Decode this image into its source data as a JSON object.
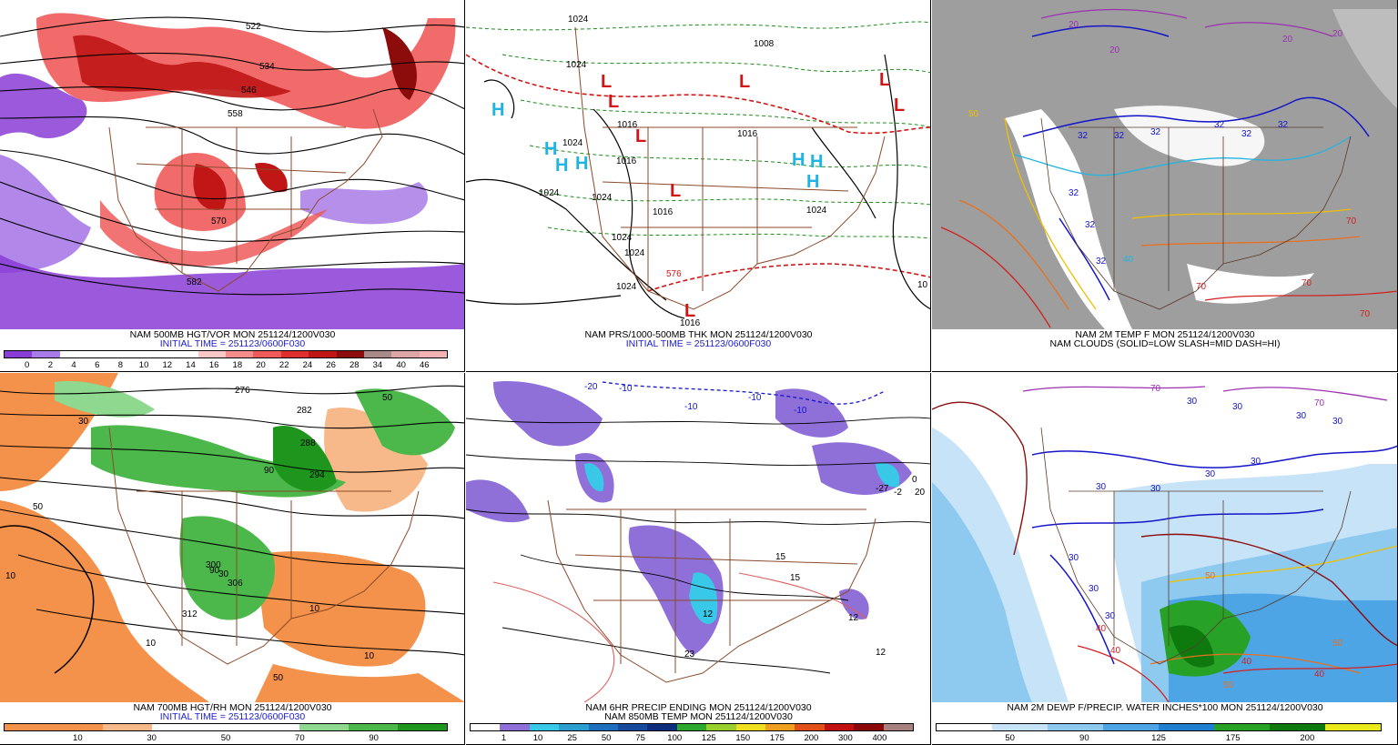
{
  "panels": [
    {
      "id": "p1",
      "caption_line1": "NAM 500MB HGT/VOR MON 251124/1200V030",
      "caption_line2": "INITIAL TIME = 251123/0600F030",
      "colorbar_colors": [
        "#8a3cd6",
        "#a97be8",
        "#ffffff",
        "#ffffff",
        "#ffffff",
        "#ffffff",
        "#ffffff",
        "#fbc7c7",
        "#f58d8d",
        "#ef5b5b",
        "#e02e2e",
        "#c01616",
        "#8c0c0c",
        "#a88a8a",
        "#dda6a6",
        "#f5b3b3"
      ],
      "colorbar_labels": [
        "0",
        "2",
        "4",
        "6",
        "8",
        "10",
        "12",
        "14",
        "16",
        "18",
        "20",
        "22",
        "24",
        "26",
        "28",
        "34",
        "40",
        "46"
      ],
      "map_labels": [
        "522",
        "534",
        "546",
        "558",
        "570",
        "582"
      ]
    },
    {
      "id": "p2",
      "caption_line1": "NAM PRS/1000-500MB THK MON 251124/1200V030",
      "caption_line2": "INITIAL TIME = 251123/0600F030",
      "map_labels": [
        "1024",
        "1024",
        "1008",
        "1024",
        "1016",
        "1016",
        "1024",
        "1024",
        "1024",
        "1024",
        "1016",
        "1016",
        "1024",
        "1024",
        "1016",
        "10",
        "576"
      ],
      "highs": [
        "H",
        "H",
        "H",
        "H",
        "H",
        "H",
        "H"
      ],
      "lows": [
        "L",
        "L",
        "L",
        "L",
        "L",
        "L",
        "L",
        "L"
      ]
    },
    {
      "id": "p3",
      "caption_line1": "NAM 2M TEMP F MON 251124/1200V030",
      "caption_line2": "NAM CLOUDS (SOLID=LOW SLASH=MID DASH=HI)",
      "map_labels": [
        "20",
        "20",
        "20",
        "20",
        "32",
        "32",
        "32",
        "32",
        "32",
        "32",
        "32",
        "32",
        "32",
        "40",
        "50",
        "70",
        "70",
        "70",
        "70"
      ]
    },
    {
      "id": "p4",
      "caption_line1": "NAM 700MB HGT/RH MON 251124/1200V030",
      "caption_line2": "INITIAL TIME = 251123/0600F030",
      "colorbar_colors": [
        "#f4914a",
        "#f4914a",
        "#f8b98a",
        "#ffffff",
        "#ffffff",
        "#ffffff",
        "#8fd88f",
        "#4cb84c",
        "#1e961e"
      ],
      "colorbar_labels": [
        "10",
        "30",
        "50",
        "70",
        "90"
      ],
      "map_labels": [
        "10",
        "10",
        "10",
        "10",
        "30",
        "30",
        "50",
        "50",
        "50",
        "90",
        "90",
        "276",
        "282",
        "288",
        "294",
        "300",
        "306",
        "312"
      ]
    },
    {
      "id": "p5",
      "caption_line1": "NAM 6HR PRECIP ENDING MON 251124/1200V030",
      "caption_line2": "NAM 850MB TEMP MON 251124/1200V030",
      "colorbar_colors": [
        "#ffffff",
        "#8f6fd8",
        "#39c8e8",
        "#2aa0d0",
        "#1f6fbf",
        "#164a9c",
        "#0c2e7c",
        "#2ea82e",
        "#9ad02e",
        "#f0e020",
        "#f0a020",
        "#e05018",
        "#c01010",
        "#8c0808",
        "#a88080"
      ],
      "colorbar_labels": [
        "1",
        "10",
        "25",
        "50",
        "75",
        "100",
        "125",
        "150",
        "175",
        "200",
        "300",
        "400"
      ],
      "map_labels": [
        "-10",
        "-10",
        "-10",
        "-10",
        "-20",
        "12",
        "12",
        "12",
        "15",
        "15",
        "-27",
        "-2",
        "0",
        "20",
        "23"
      ]
    },
    {
      "id": "p6",
      "caption_line1": "NAM 2M DEWP F/PRECIP. WATER INCHES*100 MON 251124/1200V030",
      "caption_line2": "",
      "colorbar_colors": [
        "#ffffff",
        "#c7e3f7",
        "#8ec9f0",
        "#4da5e6",
        "#1f7fd0",
        "#27a227",
        "#0e7a0e",
        "#e8e81a"
      ],
      "colorbar_labels": [
        "50",
        "90",
        "125",
        "175",
        "200"
      ],
      "map_labels": [
        "30",
        "30",
        "30",
        "30",
        "30",
        "30",
        "30",
        "30",
        "30",
        "30",
        "30",
        "40",
        "40",
        "40",
        "40",
        "50",
        "50",
        "50",
        "70",
        "70"
      ]
    }
  ]
}
